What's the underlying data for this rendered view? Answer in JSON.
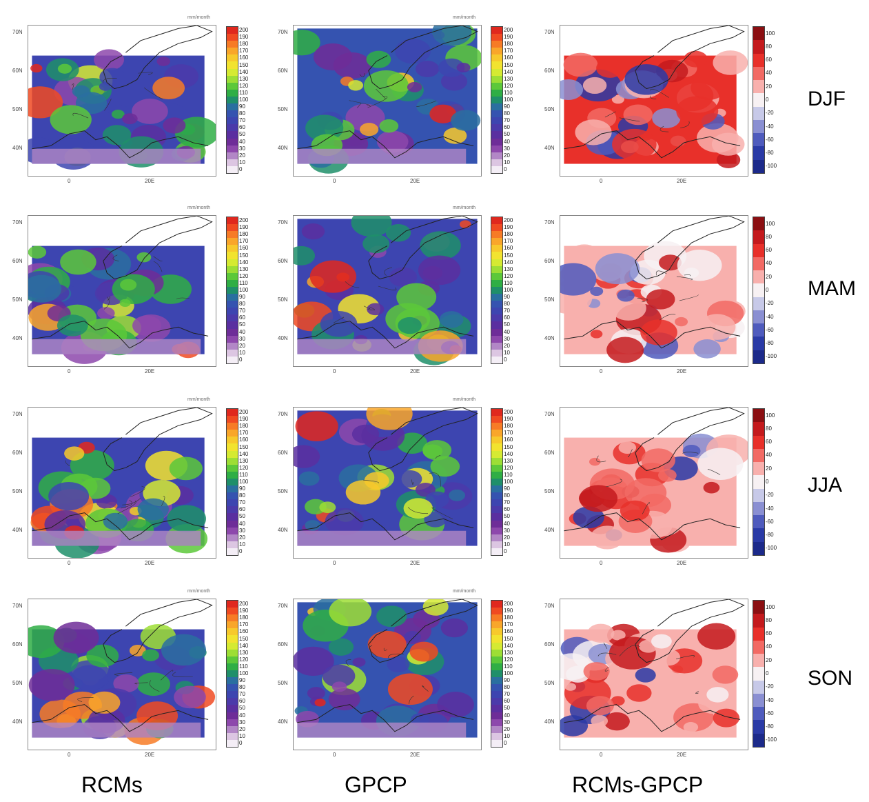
{
  "columns": [
    "RCMs",
    "GPCP",
    "RCMs-GPCP"
  ],
  "seasons": [
    "DJF",
    "MAM",
    "JJA",
    "SON"
  ],
  "units_label": "mm/month",
  "lat_ticks": [
    "70N",
    "60N",
    "50N",
    "40N"
  ],
  "lon_ticks": [
    "0",
    "20E"
  ],
  "precip_colorbar": {
    "labels": [
      "200",
      "190",
      "180",
      "170",
      "160",
      "150",
      "140",
      "130",
      "120",
      "110",
      "100",
      "90",
      "80",
      "70",
      "60",
      "50",
      "40",
      "30",
      "20",
      "10",
      "0"
    ],
    "colors": [
      "#e0281e",
      "#f04a22",
      "#f77b26",
      "#f9a62a",
      "#f7c92c",
      "#f2e32f",
      "#d5ea32",
      "#9dde35",
      "#5cc83a",
      "#2fae45",
      "#1f8f6a",
      "#2a6fa0",
      "#3553b0",
      "#3d45b0",
      "#4b3aaa",
      "#5a2fa0",
      "#6e2d98",
      "#8d48ac",
      "#b287c6",
      "#dcc6e2",
      "#f4eef6"
    ]
  },
  "diff_colorbar": {
    "labels": [
      "100",
      "80",
      "60",
      "40",
      "20",
      "0",
      "-20",
      "-40",
      "-60",
      "-80",
      "-100"
    ],
    "colors": [
      "#8b0f12",
      "#c41a1d",
      "#e8302a",
      "#f26a64",
      "#f8b0ad",
      "#f7f1f3",
      "#c7c9e8",
      "#8a8fd2",
      "#4f5bbd",
      "#2a3aa6",
      "#1c2a8a"
    ]
  },
  "colors": {
    "ocean": "#ffffff",
    "coast": "#222222"
  }
}
